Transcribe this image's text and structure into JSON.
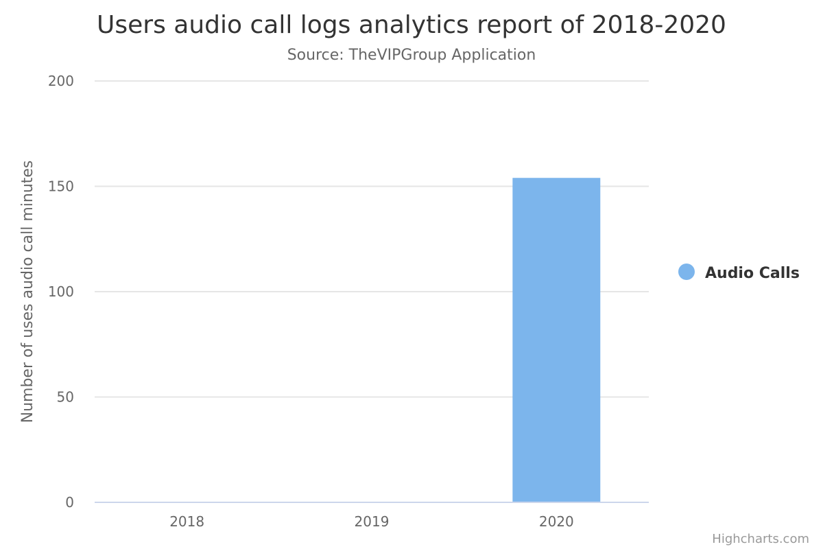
{
  "chart_data": {
    "type": "bar",
    "title": "Users audio call logs analytics report of 2018-2020",
    "subtitle": "Source: TheVIPGroup Application",
    "categories": [
      "2018",
      "2019",
      "2020"
    ],
    "series": [
      {
        "name": "Audio Calls",
        "values": [
          0,
          0,
          154
        ],
        "color": "#7cb5ec"
      }
    ],
    "xlabel": "",
    "ylabel": "Number of uses audio call minutes",
    "ylim": [
      0,
      200
    ],
    "yticks": [
      0,
      50,
      100,
      150,
      200
    ],
    "grid": true,
    "legend_position": "right"
  },
  "credits": "Highcharts.com"
}
